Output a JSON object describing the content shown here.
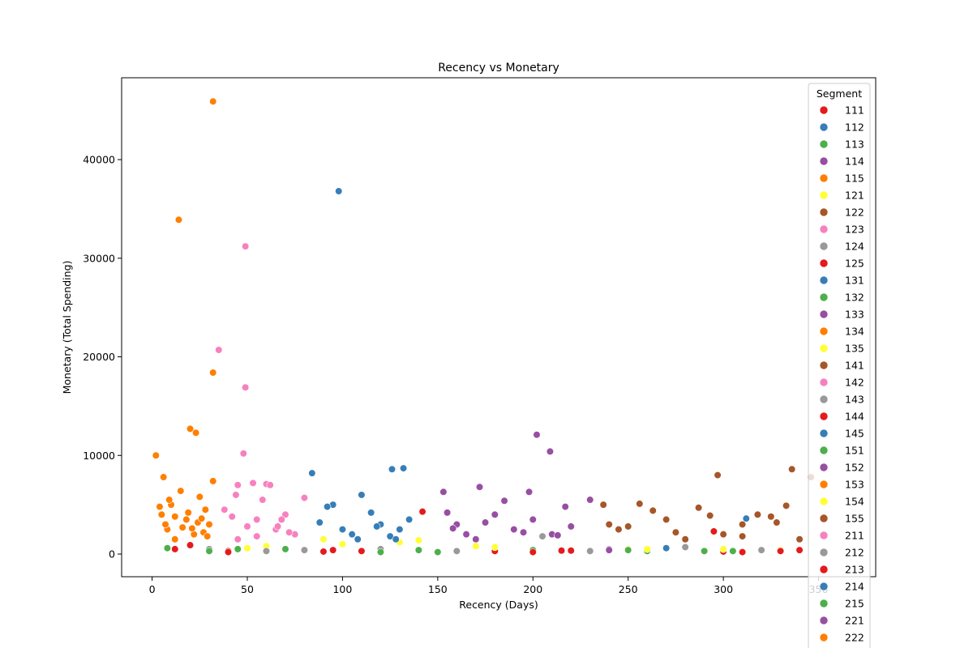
{
  "chart_data": {
    "type": "scatter",
    "title": "Recency vs Monetary",
    "xlabel": "Recency (Days)",
    "ylabel": "Monetary (Total Spending)",
    "xlim": [
      -16,
      380
    ],
    "ylim": [
      -2300,
      48300
    ],
    "xticks": [
      0,
      50,
      100,
      150,
      200,
      250,
      300,
      350
    ],
    "yticks": [
      0,
      10000,
      20000,
      30000,
      40000
    ],
    "grid": false,
    "legend": {
      "title": "Segment",
      "placement": "right"
    },
    "series": [
      {
        "name": "111",
        "color": "#e41a1c",
        "points": [
          [
            12,
            500
          ],
          [
            40,
            300
          ],
          [
            95,
            400
          ],
          [
            150,
            200
          ],
          [
            220,
            350
          ],
          [
            300,
            250
          ],
          [
            340,
            400
          ]
        ]
      },
      {
        "name": "112",
        "color": "#377eb8",
        "points": [
          [
            98,
            36800
          ],
          [
            84,
            8200
          ],
          [
            126,
            8600
          ],
          [
            132,
            8700
          ],
          [
            110,
            6000
          ],
          [
            95,
            5000
          ],
          [
            120,
            3000
          ],
          [
            105,
            2000
          ],
          [
            90,
            1500
          ],
          [
            130,
            2500
          ]
        ]
      },
      {
        "name": "113",
        "color": "#4daf4a",
        "points": [
          [
            8,
            600
          ],
          [
            45,
            500
          ],
          [
            110,
            300
          ],
          [
            200,
            400
          ],
          [
            290,
            300
          ]
        ]
      },
      {
        "name": "114",
        "color": "#984ea3",
        "points": [
          [
            202,
            12100
          ],
          [
            209,
            10400
          ],
          [
            172,
            6800
          ],
          [
            153,
            6300
          ],
          [
            198,
            6300
          ],
          [
            180,
            4000
          ],
          [
            160,
            3000
          ],
          [
            190,
            2500
          ],
          [
            210,
            2000
          ],
          [
            170,
            1500
          ]
        ]
      },
      {
        "name": "115",
        "color": "#ff7f00",
        "points": [
          [
            32,
            45900
          ],
          [
            14,
            33900
          ],
          [
            32,
            18400
          ],
          [
            20,
            12700
          ],
          [
            23,
            12300
          ],
          [
            2,
            10000
          ],
          [
            6,
            7800
          ],
          [
            32,
            7400
          ],
          [
            15,
            6400
          ],
          [
            25,
            5800
          ],
          [
            10,
            5000
          ],
          [
            28,
            4500
          ],
          [
            5,
            4000
          ],
          [
            18,
            3500
          ],
          [
            30,
            3000
          ],
          [
            8,
            2500
          ],
          [
            22,
            2000
          ],
          [
            12,
            1500
          ]
        ]
      },
      {
        "name": "121",
        "color": "#ffff33",
        "points": [
          [
            50,
            600
          ],
          [
            90,
            1500
          ],
          [
            130,
            1200
          ],
          [
            170,
            800
          ],
          [
            250,
            500
          ],
          [
            330,
            400
          ]
        ]
      },
      {
        "name": "122",
        "color": "#a65628",
        "points": [
          [
            297,
            8000
          ],
          [
            336,
            8600
          ],
          [
            346,
            7800
          ],
          [
            256,
            5100
          ],
          [
            287,
            4700
          ],
          [
            237,
            5000
          ],
          [
            270,
            3500
          ],
          [
            310,
            3000
          ],
          [
            325,
            3800
          ],
          [
            245,
            2500
          ],
          [
            300,
            2000
          ],
          [
            280,
            1500
          ]
        ]
      },
      {
        "name": "123",
        "color": "#f781bf",
        "points": [
          [
            49,
            31200
          ],
          [
            35,
            20700
          ],
          [
            49,
            16900
          ],
          [
            48,
            10200
          ],
          [
            53,
            7200
          ],
          [
            60,
            7100
          ],
          [
            62,
            7000
          ],
          [
            44,
            6000
          ],
          [
            70,
            4000
          ],
          [
            80,
            5700
          ],
          [
            55,
            3500
          ],
          [
            65,
            2500
          ],
          [
            75,
            2000
          ],
          [
            45,
            1500
          ]
        ]
      },
      {
        "name": "124",
        "color": "#999999",
        "points": [
          [
            30,
            500
          ],
          [
            80,
            400
          ],
          [
            160,
            300
          ],
          [
            240,
            500
          ],
          [
            320,
            400
          ]
        ]
      },
      {
        "name": "125",
        "color": "#e41a1c",
        "points": [
          [
            142,
            4300
          ],
          [
            20,
            900
          ],
          [
            110,
            300
          ],
          [
            215,
            350
          ],
          [
            295,
            2300
          ]
        ]
      },
      {
        "name": "131",
        "color": "#377eb8",
        "points": [
          [
            312,
            3600
          ],
          [
            115,
            4200
          ],
          [
            135,
            3500
          ],
          [
            100,
            2500
          ],
          [
            125,
            1800
          ]
        ]
      },
      {
        "name": "132",
        "color": "#4daf4a",
        "points": [
          [
            70,
            500
          ],
          [
            140,
            400
          ],
          [
            260,
            300
          ]
        ]
      },
      {
        "name": "133",
        "color": "#984ea3",
        "points": [
          [
            230,
            5500
          ],
          [
            185,
            5400
          ],
          [
            155,
            4200
          ],
          [
            200,
            3500
          ],
          [
            220,
            2800
          ],
          [
            165,
            2000
          ]
        ]
      },
      {
        "name": "134",
        "color": "#ff7f00",
        "points": [
          [
            4,
            4800
          ],
          [
            12,
            3800
          ],
          [
            24,
            3200
          ],
          [
            16,
            2700
          ],
          [
            27,
            2200
          ]
        ]
      },
      {
        "name": "135",
        "color": "#ffff33",
        "points": [
          [
            60,
            800
          ],
          [
            140,
            1400
          ],
          [
            300,
            500
          ]
        ]
      },
      {
        "name": "141",
        "color": "#a65628",
        "points": [
          [
            263,
            4400
          ],
          [
            333,
            4900
          ],
          [
            318,
            4000
          ],
          [
            240,
            3000
          ],
          [
            275,
            2200
          ],
          [
            310,
            1800
          ]
        ]
      },
      {
        "name": "142",
        "color": "#f781bf",
        "points": [
          [
            45,
            7000
          ],
          [
            58,
            5500
          ],
          [
            38,
            4500
          ],
          [
            68,
            3500
          ],
          [
            50,
            2800
          ],
          [
            72,
            2200
          ]
        ]
      },
      {
        "name": "143",
        "color": "#999999",
        "points": [
          [
            120,
            500
          ],
          [
            205,
            1800
          ],
          [
            280,
            700
          ]
        ]
      },
      {
        "name": "144",
        "color": "#e41a1c",
        "points": [
          [
            40,
            200
          ],
          [
            180,
            300
          ],
          [
            310,
            200
          ]
        ]
      },
      {
        "name": "145",
        "color": "#377eb8",
        "points": [
          [
            92,
            4800
          ],
          [
            118,
            2800
          ],
          [
            108,
            1500
          ]
        ]
      },
      {
        "name": "151",
        "color": "#4daf4a",
        "points": [
          [
            30,
            300
          ],
          [
            150,
            200
          ],
          [
            250,
            400
          ]
        ]
      },
      {
        "name": "152",
        "color": "#984ea3",
        "points": [
          [
            217,
            4800
          ],
          [
            175,
            3200
          ],
          [
            195,
            2200
          ]
        ]
      },
      {
        "name": "153",
        "color": "#ff7f00",
        "points": [
          [
            9,
            5500
          ],
          [
            19,
            4200
          ],
          [
            26,
            3600
          ]
        ]
      },
      {
        "name": "154",
        "color": "#ffff33",
        "points": [
          [
            100,
            1000
          ],
          [
            180,
            700
          ],
          [
            260,
            500
          ]
        ]
      },
      {
        "name": "155",
        "color": "#a65628",
        "points": [
          [
            293,
            3900
          ],
          [
            328,
            3200
          ],
          [
            250,
            2800
          ],
          [
            340,
            1500
          ]
        ]
      },
      {
        "name": "211",
        "color": "#f781bf",
        "points": [
          [
            42,
            3800
          ],
          [
            66,
            2800
          ],
          [
            55,
            1800
          ]
        ]
      },
      {
        "name": "212",
        "color": "#999999",
        "points": [
          [
            60,
            300
          ],
          [
            230,
            300
          ]
        ]
      },
      {
        "name": "213",
        "color": "#e41a1c",
        "points": [
          [
            90,
            250
          ],
          [
            200,
            200
          ],
          [
            330,
            300
          ]
        ]
      },
      {
        "name": "214",
        "color": "#377eb8",
        "points": [
          [
            88,
            3200
          ],
          [
            128,
            1500
          ],
          [
            270,
            600
          ]
        ]
      },
      {
        "name": "215",
        "color": "#4daf4a",
        "points": [
          [
            120,
            200
          ],
          [
            305,
            300
          ]
        ]
      },
      {
        "name": "221",
        "color": "#984ea3",
        "points": [
          [
            158,
            2600
          ],
          [
            213,
            1900
          ],
          [
            240,
            400
          ]
        ]
      },
      {
        "name": "222",
        "color": "#ff7f00",
        "points": [
          [
            7,
            3000
          ],
          [
            21,
            2600
          ],
          [
            29,
            1800
          ]
        ]
      }
    ]
  }
}
